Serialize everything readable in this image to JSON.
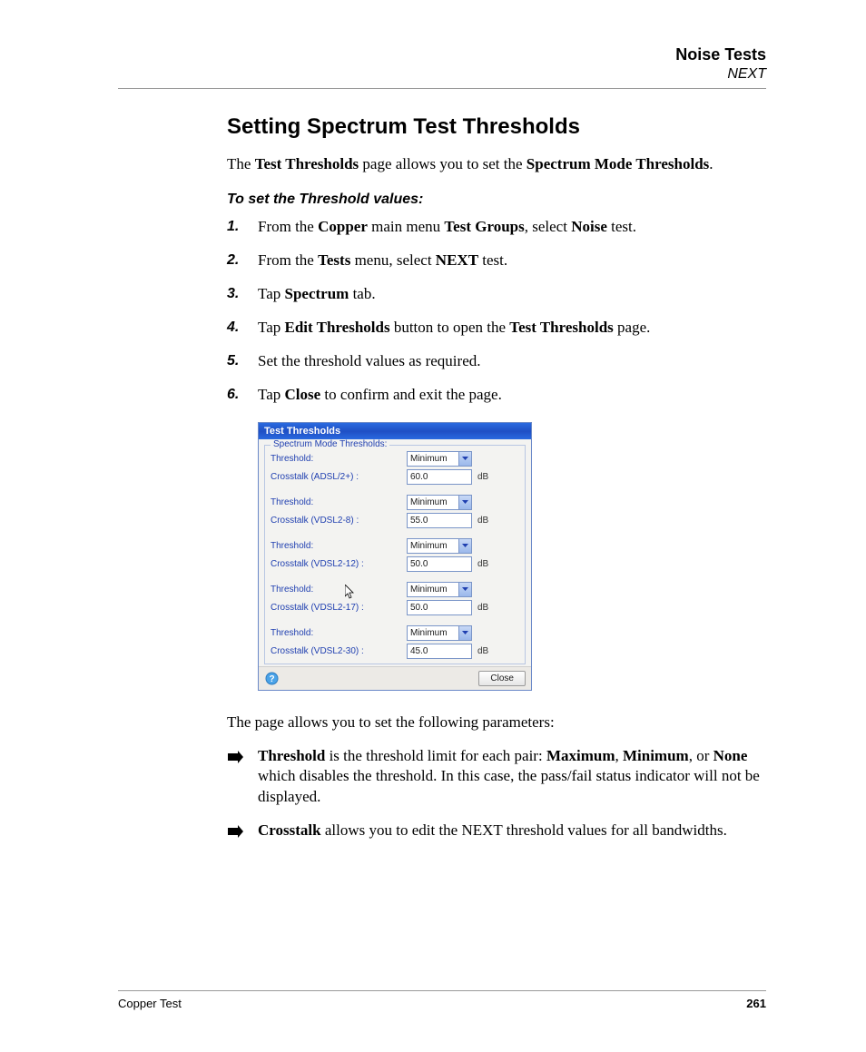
{
  "header": {
    "title": "Noise Tests",
    "subtitle": "NEXT"
  },
  "section": {
    "heading": "Setting Spectrum Test Thresholds",
    "intro_parts": {
      "p1": "The ",
      "b1": "Test Thresholds",
      "p2": " page allows you to set the ",
      "b2": "Spectrum Mode Thresholds",
      "p3": "."
    },
    "subheading": "To set the Threshold values:",
    "steps": [
      {
        "pre": "From the ",
        "b1": "Copper",
        "mid1": " main menu ",
        "b2": "Test Groups",
        "mid2": ", select ",
        "b3": "Noise",
        "post": " test."
      },
      {
        "pre": "From the ",
        "b1": "Tests",
        "mid1": " menu, select ",
        "b2": "NEXT",
        "post": " test."
      },
      {
        "pre": "Tap ",
        "b1": "Spectrum",
        "post": " tab."
      },
      {
        "pre": "Tap ",
        "b1": "Edit Thresholds",
        "mid1": " button to open the ",
        "b2": "Test Thresholds",
        "post": " page."
      },
      {
        "plain": "Set the threshold values as required."
      },
      {
        "pre": "Tap ",
        "b1": "Close",
        "post": " to confirm and exit the page."
      }
    ],
    "after_image": "The page allows you to set the following parameters:",
    "bullets": [
      {
        "b1": "Threshold",
        "p1": " is the threshold limit for each pair: ",
        "b2": "Maximum",
        "p2": ", ",
        "b3": "Minimum",
        "p3": ", or ",
        "b4": "None",
        "p4": " which disables the threshold. In this case, the pass/fail status indicator will not be displayed."
      },
      {
        "b1": "Crosstalk",
        "p1": " allows you to edit the NEXT threshold values for all bandwidths."
      }
    ]
  },
  "dialog": {
    "title": "Test Thresholds",
    "legend": "Spectrum Mode Thresholds:",
    "threshold_label": "Threshold:",
    "unit": "dB",
    "close": "Close",
    "rows": [
      {
        "label": "Crosstalk (ADSL/2+) :",
        "select": "Minimum",
        "value": "60.0"
      },
      {
        "label": "Crosstalk (VDSL2-8) :",
        "select": "Minimum",
        "value": "55.0"
      },
      {
        "label": "Crosstalk (VDSL2-12) :",
        "select": "Minimum",
        "value": "50.0"
      },
      {
        "label": "Crosstalk (VDSL2-17) :",
        "select": "Minimum",
        "value": "50.0"
      },
      {
        "label": "Crosstalk (VDSL2-30) :",
        "select": "Minimum",
        "value": "45.0"
      }
    ],
    "colors": {
      "titlebar_bg": "#2a6ae0",
      "titlebar_text": "#ffffff",
      "label_color": "#1f3fb0",
      "border_color": "#7a95c8",
      "panel_bg": "#f3f3f1"
    }
  },
  "footer": {
    "left": "Copper Test",
    "page": "261"
  }
}
